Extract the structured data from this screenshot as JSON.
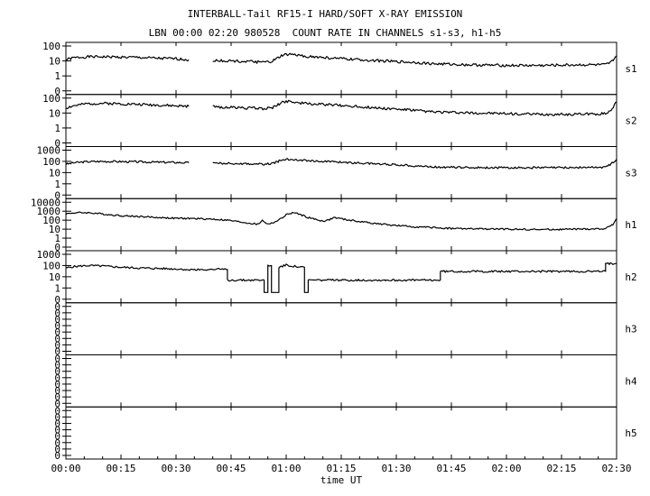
{
  "chart_data": {
    "type": "line",
    "title": "INTERBALL-Tail RF15-I HARD/SOFT X-RAY EMISSION",
    "subtitle": "LBN 00:00 02:20 980528  COUNT RATE IN CHANNELS s1-s3, h1-h5",
    "xlabel": "time UT",
    "x_ticks": [
      "00:00",
      "00:15",
      "00:30",
      "00:45",
      "01:00",
      "01:15",
      "01:30",
      "01:45",
      "02:00",
      "02:15",
      "02:30"
    ],
    "x_range_minutes": [
      0,
      150
    ],
    "y_scale": "log",
    "grid": false,
    "panels": [
      {
        "name": "s1",
        "y_ticks": [
          "100",
          "10",
          "1",
          "0"
        ],
        "series": [
          {
            "x": [
              0,
              2,
              6,
              10,
              15,
              20,
              25,
              30,
              33.5
            ],
            "y": [
              12,
              16,
              19,
              19,
              18,
              17,
              15,
              14,
              12
            ]
          },
          {
            "x": [
              40,
              45,
              50,
              54,
              56,
              57.5,
              59,
              61,
              63,
              66,
              70,
              75,
              80,
              90,
              95,
              100,
              110,
              120,
              130,
              140,
              147,
              148.5,
              150
            ],
            "y": [
              11,
              10,
              9,
              8,
              9,
              14,
              24,
              28,
              24,
              20,
              17,
              14,
              12,
              9,
              8,
              6.5,
              5.5,
              5,
              5,
              5.5,
              5.5,
              8,
              22
            ]
          }
        ]
      },
      {
        "name": "s2",
        "y_ticks": [
          "100",
          "10",
          "1",
          "0"
        ],
        "series": [
          {
            "x": [
              0,
              2,
              6,
              10,
              15,
              20,
              25,
              30,
              33.5
            ],
            "y": [
              22,
              30,
              42,
              45,
              42,
              38,
              34,
              30,
              28
            ]
          },
          {
            "x": [
              40,
              45,
              50,
              54,
              56,
              57.5,
              59,
              61,
              63,
              66,
              70,
              75,
              80,
              90,
              95,
              100,
              110,
              120,
              130,
              140,
              147,
              148.5,
              150
            ],
            "y": [
              26,
              24,
              22,
              20,
              22,
              32,
              55,
              65,
              50,
              42,
              38,
              32,
              26,
              18,
              15,
              12,
              10,
              9,
              8,
              8.5,
              9,
              16,
              55
            ]
          }
        ]
      },
      {
        "name": "s3",
        "y_ticks": [
          "1000",
          "100",
          "10",
          "1",
          "0"
        ],
        "series": [
          {
            "x": [
              0,
              2,
              6,
              10,
              15,
              20,
              25,
              30,
              33.5
            ],
            "y": [
              55,
              75,
              95,
              100,
              95,
              90,
              85,
              80,
              75
            ]
          },
          {
            "x": [
              40,
              45,
              50,
              54,
              56,
              57.5,
              59,
              61,
              63,
              66,
              70,
              75,
              80,
              90,
              95,
              100,
              110,
              120,
              130,
              140,
              147,
              148.5,
              150
            ],
            "y": [
              70,
              65,
              60,
              55,
              62,
              90,
              140,
              160,
              140,
              120,
              100,
              85,
              70,
              50,
              40,
              32,
              28,
              27,
              27,
              28,
              30,
              60,
              160
            ]
          }
        ]
      },
      {
        "name": "h1",
        "y_ticks": [
          "10000",
          "1000",
          "100",
          "10",
          "1",
          "0"
        ],
        "series": [
          {
            "x": [
              0,
              2,
              5,
              8,
              12,
              16,
              20,
              25,
              30,
              35,
              40,
              44,
              48,
              51,
              52.5,
              53.5,
              54.5,
              56,
              58,
              60,
              62,
              64,
              66,
              68,
              70,
              71.5,
              73,
              76,
              80,
              85,
              90,
              95,
              100,
              105,
              110,
              120,
              130,
              140,
              147,
              149,
              150
            ],
            "y": [
              500,
              650,
              700,
              600,
              400,
              300,
              260,
              200,
              160,
              150,
              130,
              100,
              60,
              40,
              35,
              110,
              40,
              45,
              100,
              400,
              700,
              400,
              200,
              120,
              80,
              100,
              200,
              120,
              70,
              40,
              25,
              18,
              15,
              12,
              11,
              10,
              9,
              10,
              11,
              35,
              150
            ]
          }
        ]
      },
      {
        "name": "h2",
        "y_ticks": [
          "1000",
          "100",
          "10",
          "1",
          "0"
        ],
        "series": [
          {
            "x": [
              0,
              2,
              6,
              10,
              15,
              20,
              25,
              30,
              33
            ],
            "y": [
              60,
              80,
              100,
              90,
              70,
              60,
              55,
              50,
              45
            ]
          },
          {
            "x": [
              33,
              44,
              44,
              54,
              54,
              55,
              55,
              56,
              56,
              58,
              58,
              60,
              64,
              65,
              65,
              66,
              66,
              87,
              87,
              102,
              102,
              147,
              147,
              150
            ],
            "y": [
              45,
              45,
              5,
              5,
              0.4,
              0.4,
              100,
              100,
              0.4,
              0.4,
              70,
              110,
              70,
              70,
              0.4,
              0.4,
              5,
              5,
              5,
              5,
              30,
              30,
              150,
              150
            ]
          }
        ]
      },
      {
        "name": "h3",
        "y_ticks": [
          "0",
          "0",
          "0",
          "0",
          "0",
          "0",
          "0",
          "0"
        ],
        "series": []
      },
      {
        "name": "h4",
        "y_ticks": [
          "0",
          "0",
          "0",
          "0",
          "0",
          "0",
          "0",
          "0"
        ],
        "series": []
      },
      {
        "name": "h5",
        "y_ticks": [
          "0",
          "0",
          "0",
          "0",
          "0",
          "0",
          "0",
          "0"
        ],
        "series": []
      }
    ]
  }
}
